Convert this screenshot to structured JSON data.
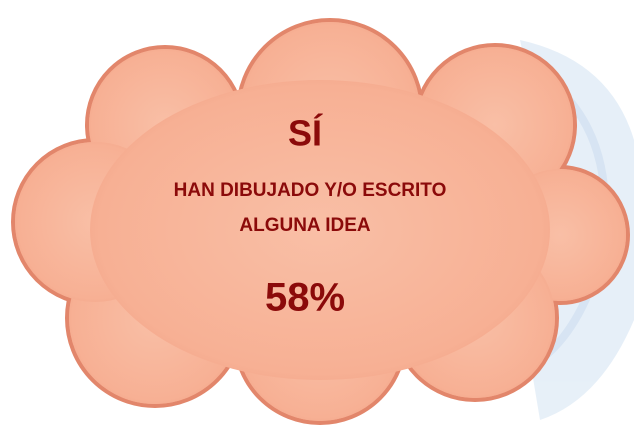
{
  "heading": "SÍ",
  "text_lines": [
    "HAN DIBUJADO Y/O ESCRITO",
    "ALGUNA IDEA"
  ],
  "percent": "58%"
}
